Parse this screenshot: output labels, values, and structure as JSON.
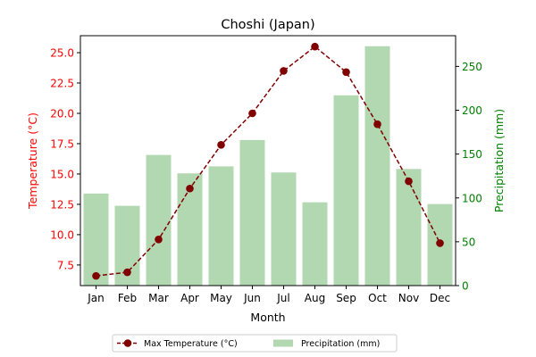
{
  "chart_data": {
    "type": "bar+line",
    "title": "Choshi (Japan)",
    "xlabel": "Month",
    "ylabel_left": "Temperature (°C)",
    "ylabel_right": "Precipitation (mm)",
    "categories": [
      "Jan",
      "Feb",
      "Mar",
      "Apr",
      "May",
      "Jun",
      "Jul",
      "Aug",
      "Sep",
      "Oct",
      "Nov",
      "Dec"
    ],
    "ylim_left": [
      5.8,
      26.4
    ],
    "ylim_right": [
      0,
      285
    ],
    "yticks_left": [
      "7.5",
      "10.0",
      "12.5",
      "15.0",
      "17.5",
      "20.0",
      "22.5",
      "25.0"
    ],
    "yticks_right": [
      "0",
      "50",
      "100",
      "150",
      "200",
      "250"
    ],
    "series": [
      {
        "name": "Max Temperature (°C)",
        "kind": "line",
        "axis": "left",
        "color": "#800000",
        "values": [
          6.6,
          6.9,
          9.6,
          13.8,
          17.4,
          20.0,
          23.5,
          25.5,
          23.4,
          19.1,
          14.4,
          9.3
        ]
      },
      {
        "name": "Precipitation (mm)",
        "kind": "bar",
        "axis": "right",
        "color": "#b2d8b2",
        "values": [
          105,
          91,
          149,
          128,
          136,
          166,
          129,
          95,
          217,
          273,
          133,
          93
        ]
      }
    ],
    "legend_position": "bottom-center",
    "left_axis_color": "#ff0000",
    "right_axis_color": "#008000"
  }
}
